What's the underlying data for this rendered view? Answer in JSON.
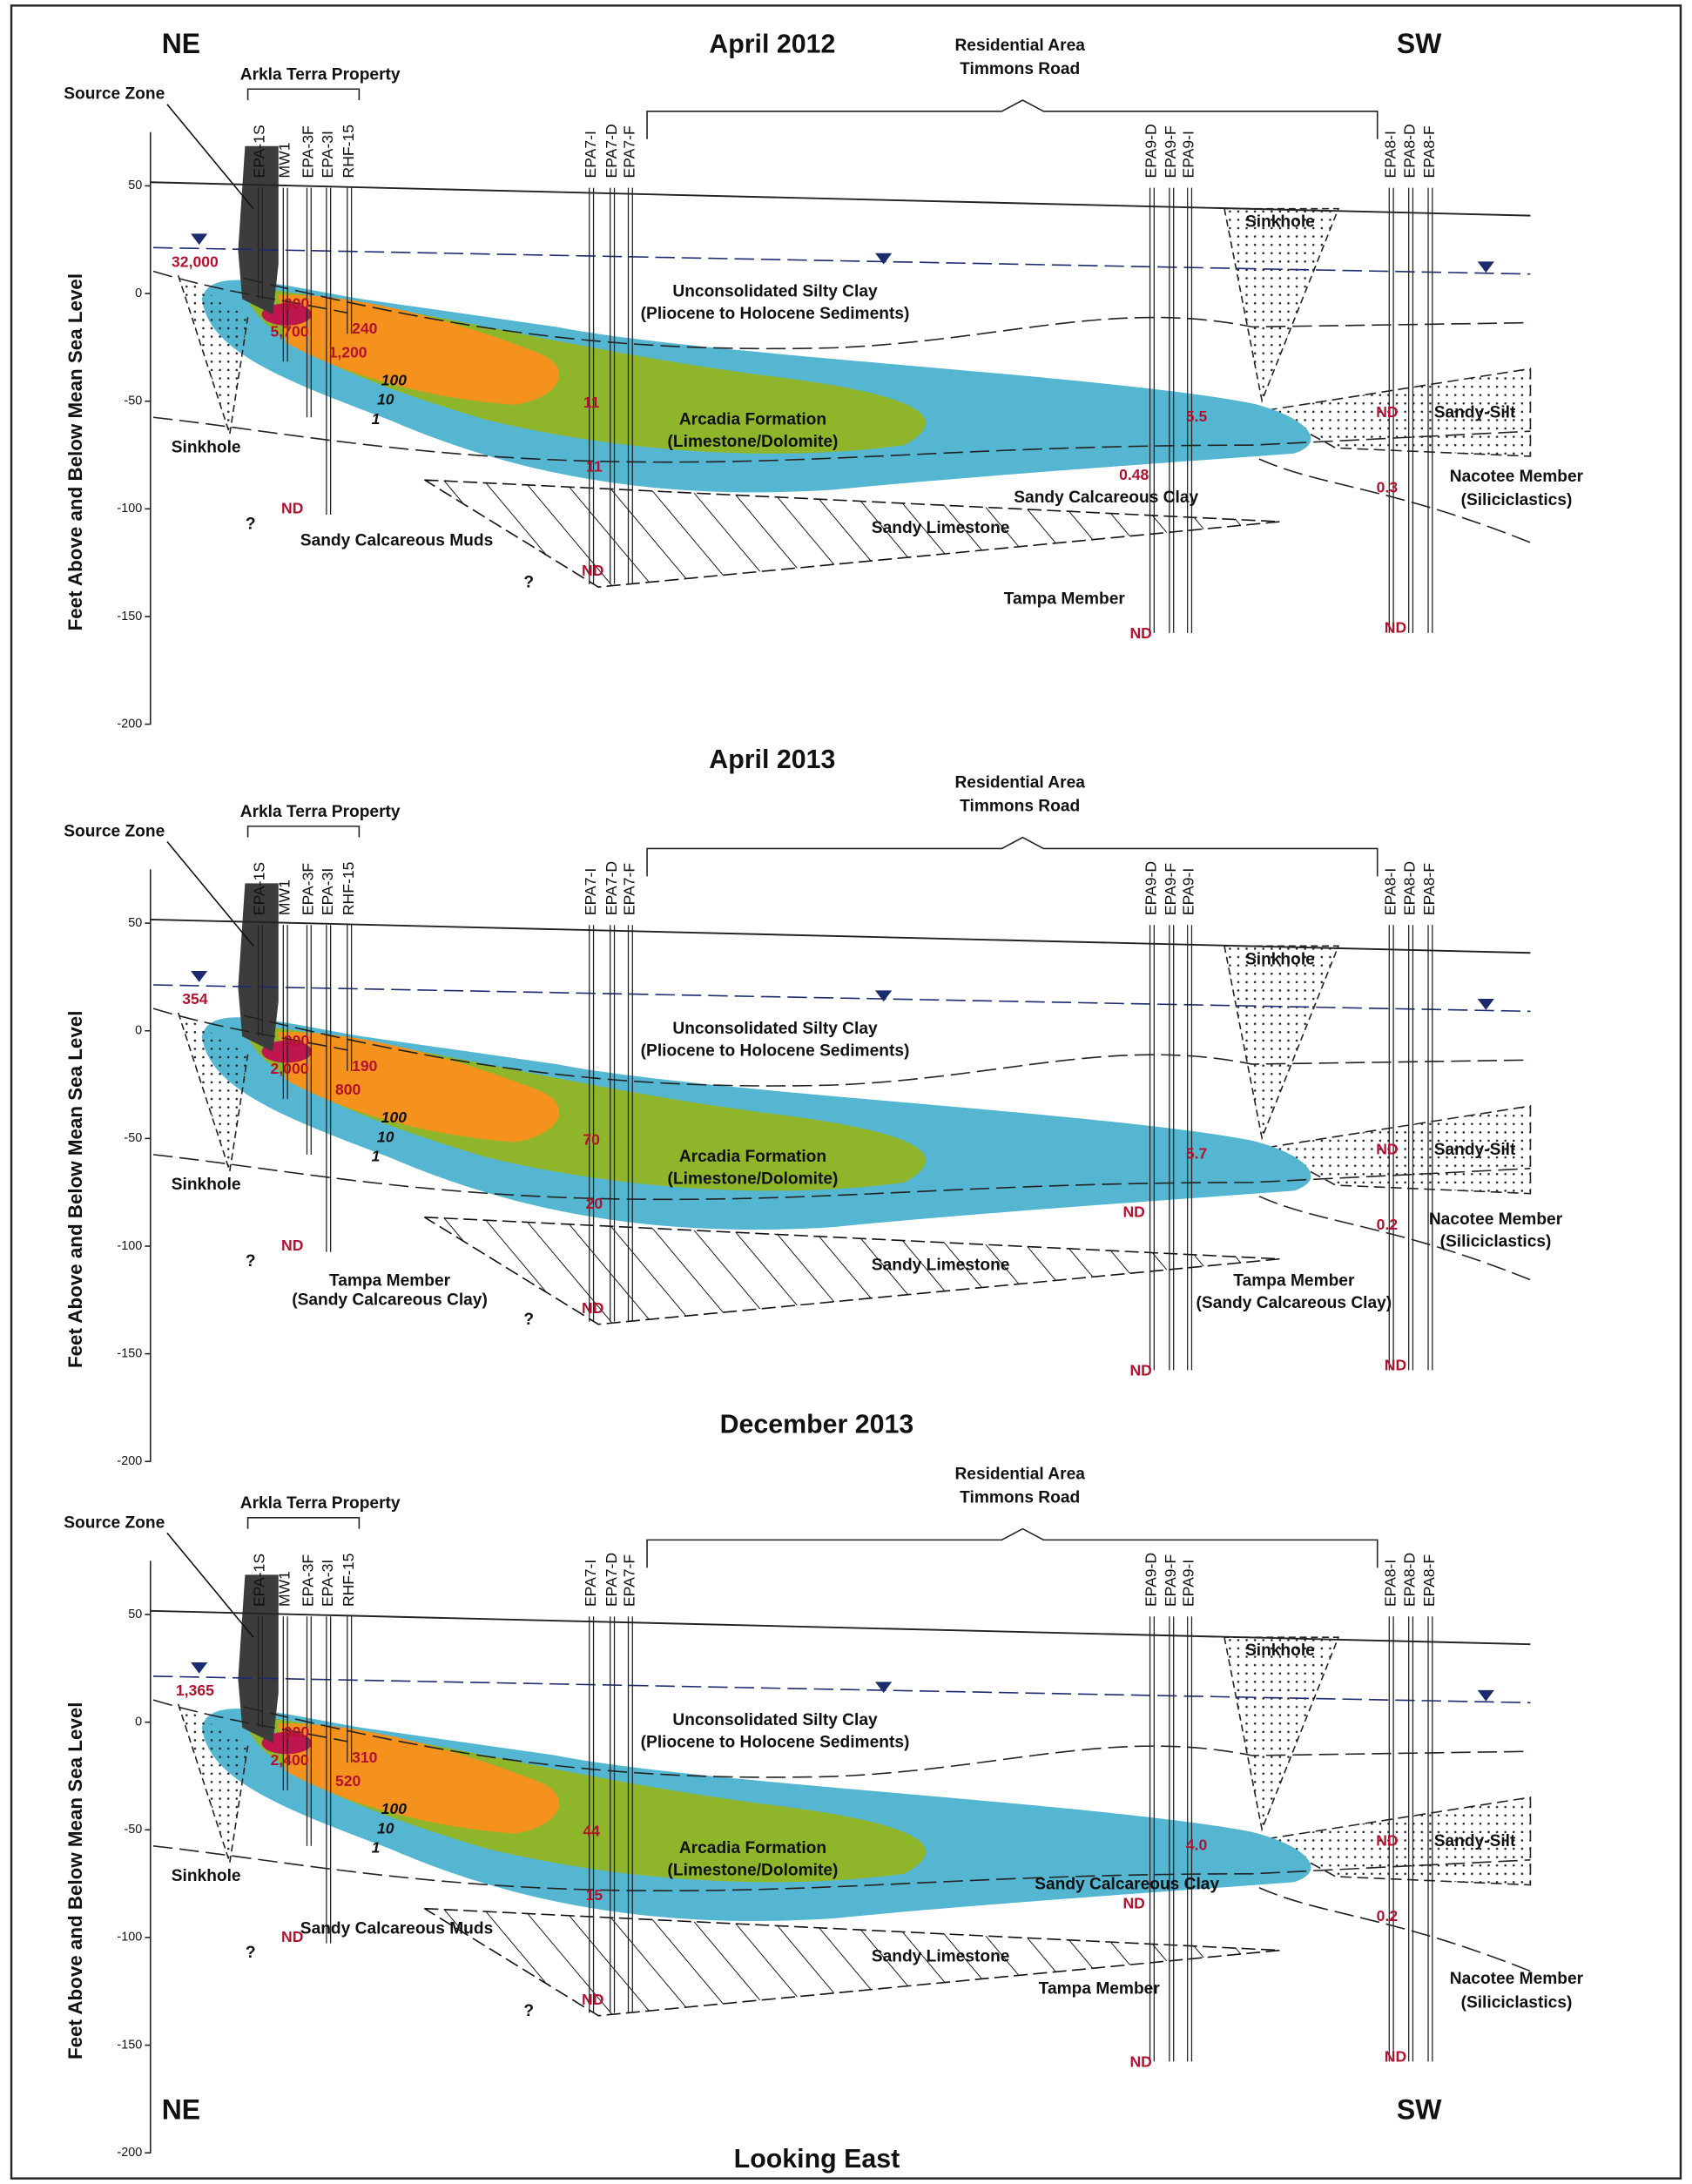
{
  "y_axis_label": "Feet Above and Below Mean Sea Level",
  "yticks": [
    50,
    0,
    -50,
    -100,
    -150,
    -200
  ],
  "source_zone": "Source Zone",
  "property": "Arkla Terra Property",
  "residential": [
    "Residential Area",
    "Timmons Road"
  ],
  "wells": [
    [
      "EPA-1S",
      "MW1",
      "EPA-3F",
      "EPA-3I",
      "RHF-15"
    ],
    [
      "EPA7-I",
      "EPA7-D",
      "EPA7-F"
    ],
    [
      "EPA9-D",
      "EPA9-F",
      "EPA9-I"
    ],
    [
      "EPA8-I",
      "EPA8-D",
      "EPA8-F"
    ]
  ],
  "units": {
    "sinkhole": "Sinkhole",
    "silty_clay": [
      "Unconsolidated Silty Clay",
      "(Pliocene to Holocene Sediments)"
    ],
    "arcadia": [
      "Arcadia Formation",
      "(Limestone/Dolomite)"
    ],
    "sandy_limestone": "Sandy Limestone",
    "sandy_silt": "Sandy-Silt"
  },
  "contours": [
    "100",
    "10",
    "1"
  ],
  "unknown": "?",
  "footer": "Looking East",
  "panels": [
    {
      "title": "April 2012",
      "directions": [
        "NE",
        "SW"
      ],
      "labels": [
        "Sandy Calcareous Clay",
        "Sandy Calcareous Muds",
        "Tampa Member",
        "Nacotee Member",
        "(Siliciclastics)"
      ],
      "concentrations": [
        "32,000",
        "900",
        "5,700",
        "1,200",
        "240",
        "11",
        "11",
        "ND",
        "ND",
        "5.5",
        "0.48",
        "ND",
        "ND",
        "0.3",
        "ND"
      ]
    },
    {
      "title": "April 2013",
      "labels": [
        "Tampa Member",
        "(Sandy Calcareous Clay)",
        "Tampa Member",
        "(Sandy Calcareous Clay)",
        "Nacotee Member",
        "(Siliciclastics)"
      ],
      "concentrations": [
        "354",
        "900",
        "2,000",
        "800",
        "190",
        "70",
        "20",
        "ND",
        "ND",
        "5.7",
        "ND",
        "ND",
        "ND",
        "0.2",
        "ND"
      ]
    },
    {
      "title": "December 2013",
      "directions": [
        "NE",
        "SW"
      ],
      "labels": [
        "Sandy Calcareous Clay",
        "Sandy Calcareous Muds",
        "Tampa Member",
        "Nacotee Member",
        "(Siliciclastics)"
      ],
      "concentrations": [
        "1,365",
        "900",
        "2,400",
        "520",
        "310",
        "44",
        "15",
        "ND",
        "ND",
        "4.0",
        "ND",
        "ND",
        "ND",
        "0.2",
        "ND"
      ]
    }
  ]
}
